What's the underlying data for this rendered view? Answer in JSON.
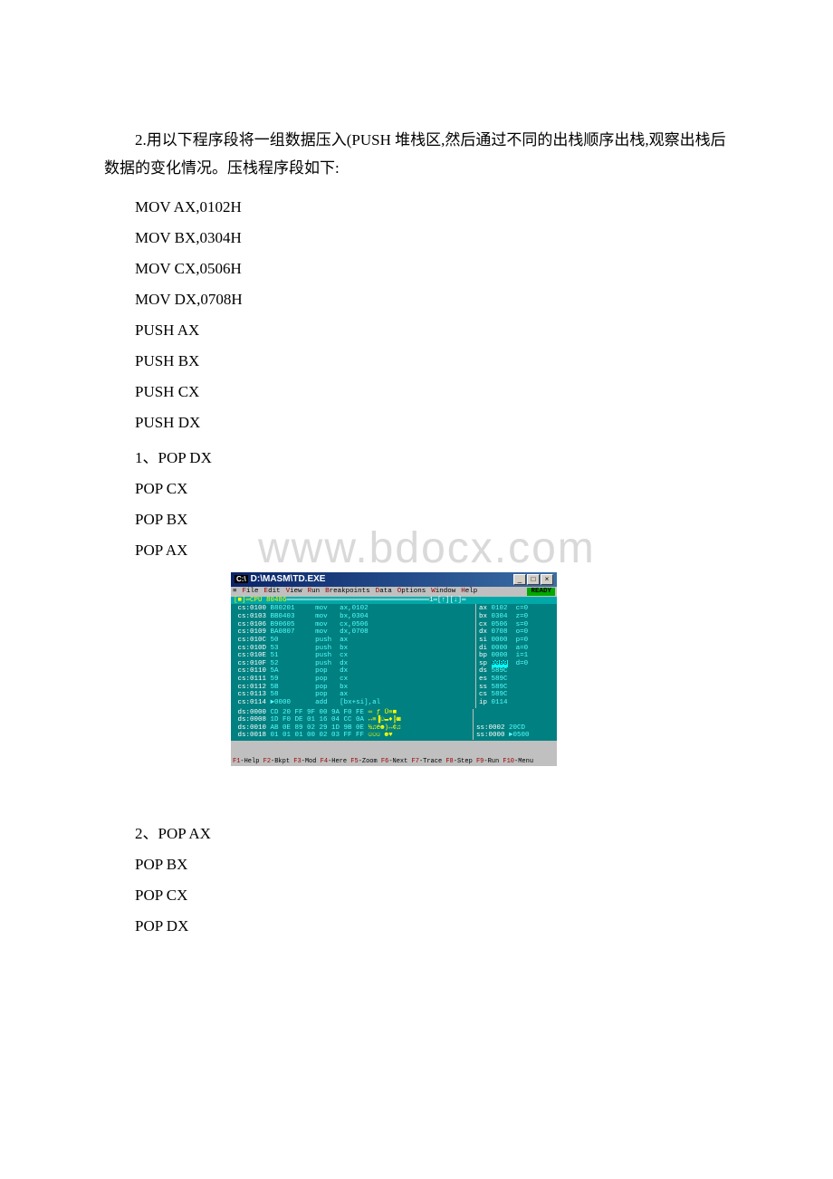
{
  "paragraph": "2.用以下程序段将一组数据压入(PUSH 堆栈区,然后通过不同的出栈顺序出栈,观察出栈后数据的变化情况。压栈程序段如下:",
  "asm_lines": [
    "MOV AX,0102H",
    "MOV BX,0304H",
    "MOV CX,0506H",
    "MOV DX,0708H",
    "PUSH AX",
    "PUSH BX",
    "PUSH CX",
    "PUSH DX",
    "1、POP DX",
    "POP CX",
    "POP BX",
    "POP AX"
  ],
  "asm_lines2": [
    "2、POP AX",
    "POP BX",
    "POP CX",
    "POP DX"
  ],
  "watermark": "www.bdocx.com",
  "window": {
    "title": "D:\\MASM\\TD.EXE",
    "ready": "READY",
    "menu": [
      "≡",
      "File",
      "Edit",
      "View",
      "Run",
      "Breakpoints",
      "Data",
      "Options",
      "Window",
      "Help"
    ],
    "panel_title": "[■]═CPU 80486",
    "disasm": [
      {
        "addr": "cs:0100",
        "bytes": "B80201",
        "mnem": "mov",
        "op": "ax,0102"
      },
      {
        "addr": "cs:0103",
        "bytes": "BB0403",
        "mnem": "mov",
        "op": "bx,0304"
      },
      {
        "addr": "cs:0106",
        "bytes": "B90605",
        "mnem": "mov",
        "op": "cx,0506"
      },
      {
        "addr": "cs:0109",
        "bytes": "BA0807",
        "mnem": "mov",
        "op": "dx,0708"
      },
      {
        "addr": "cs:010C",
        "bytes": "50",
        "mnem": "push",
        "op": "ax"
      },
      {
        "addr": "cs:010D",
        "bytes": "53",
        "mnem": "push",
        "op": "bx"
      },
      {
        "addr": "cs:010E",
        "bytes": "51",
        "mnem": "push",
        "op": "cx"
      },
      {
        "addr": "cs:010F",
        "bytes": "52",
        "mnem": "push",
        "op": "dx"
      },
      {
        "addr": "cs:0110",
        "bytes": "5A",
        "mnem": "pop",
        "op": "dx"
      },
      {
        "addr": "cs:0111",
        "bytes": "59",
        "mnem": "pop",
        "op": "cx"
      },
      {
        "addr": "cs:0112",
        "bytes": "5B",
        "mnem": "pop",
        "op": "bx"
      },
      {
        "addr": "cs:0113",
        "bytes": "58",
        "mnem": "pop",
        "op": "ax"
      },
      {
        "addr": "cs:0114",
        "bytes": "►0000",
        "mnem": "add",
        "op": "[bx+si],al"
      }
    ],
    "regs": [
      {
        "name": "ax",
        "val": "0102",
        "flag": "c=0"
      },
      {
        "name": "bx",
        "val": "0304",
        "flag": "z=0"
      },
      {
        "name": "cx",
        "val": "0506",
        "flag": "s=0"
      },
      {
        "name": "dx",
        "val": "0708",
        "flag": "o=0"
      },
      {
        "name": "si",
        "val": "0000",
        "flag": "p=0"
      },
      {
        "name": "di",
        "val": "0000",
        "flag": "a=0"
      },
      {
        "name": "bp",
        "val": "0000",
        "flag": "i=1"
      },
      {
        "name": "sp",
        "val": "0000",
        "flag": "d=0",
        "hl": true
      },
      {
        "name": "ds",
        "val": "589C",
        "flag": ""
      },
      {
        "name": "es",
        "val": "589C",
        "flag": ""
      },
      {
        "name": "ss",
        "val": "589C",
        "flag": ""
      },
      {
        "name": "cs",
        "val": "589C",
        "flag": ""
      },
      {
        "name": "ip",
        "val": "0114",
        "flag": ""
      }
    ],
    "dump": [
      {
        "addr": "ds:0000",
        "hex": "CD 20 FF 9F 00 9A F0 FE",
        "asc": "═ ƒ Ü≡■"
      },
      {
        "addr": "ds:0008",
        "hex": "1D F0 DE 01 16 04 CC 0A",
        "asc": "↔≡▐☺▬♦╠◙"
      },
      {
        "addr": "ds:0010",
        "hex": "AB 0E 89 02 29 1D 9B 0E",
        "asc": "½♫ë☻)↔¢♫"
      },
      {
        "addr": "ds:0018",
        "hex": "01 01 01 00 02 03 FF FF",
        "asc": "☺☺☺ ☻♥  "
      }
    ],
    "stack": [
      {
        "addr": "ss:0002",
        "val": "20CD"
      },
      {
        "addr": "ss:0000",
        "val": "►0500"
      }
    ],
    "status": "F1-Help F2-Bkpt F3-Mod F4-Here F5-Zoom F6-Next F7-Trace F8-Step F9-Run F10-Menu"
  },
  "colors": {
    "titlebar_start": "#0a246a",
    "titlebar_end": "#3a6ea5",
    "tui_bg": "#008080",
    "tui_text": "#ffffff",
    "tui_cyan": "#55ffff",
    "tui_yellow": "#ffff00",
    "menu_bg": "#c0c0c0",
    "hotkey": "#a00000",
    "ready_bg": "#00a800",
    "highlight_bg": "#00ffff",
    "watermark": "#d9d9d9"
  }
}
